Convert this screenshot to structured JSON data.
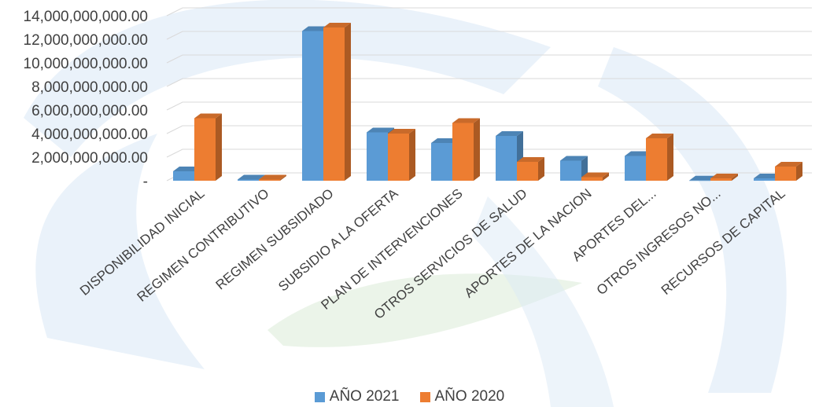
{
  "colors": {
    "series_2021": "#5b9bd5",
    "series_2020": "#ed7d31",
    "watermark_blue": "#dceaf6",
    "watermark_green": "#e3efdf",
    "grid": "#d9d9d9",
    "text": "#404040"
  },
  "chart_data": {
    "type": "bar",
    "style": "3d clustered column",
    "categories": [
      "DISPONIBILIDAD INICIAL",
      "REGIMEN CONTRIBUTIVO",
      "REGIMEN SUBSIDIADO",
      "SUBSIDIO A LA OFERTA",
      "PLAN DE INTERVENCIONES",
      "OTROS SERVICIOS DE SALUD",
      "APORTES DE LA NACION",
      "APORTES DEL...",
      "OTROS INGRESOS NO...",
      "RECURSOS DE CAPITAL"
    ],
    "series": [
      {
        "name": "AÑO 2021",
        "values": [
          800000000,
          100000000,
          12700000000,
          4100000000,
          3200000000,
          3800000000,
          1700000000,
          2100000000,
          20000000,
          200000000
        ]
      },
      {
        "name": "AÑO 2020",
        "values": [
          5300000000,
          100000000,
          13000000000,
          4000000000,
          4900000000,
          1600000000,
          300000000,
          3600000000,
          200000000,
          1200000000
        ]
      }
    ],
    "y_tick_labels": [
      "-",
      "2,000,000,000.00",
      "4,000,000,000.00",
      "6,000,000,000.00",
      "8,000,000,000.00",
      "10,000,000,000.00",
      "12,000,000,000.00",
      "14,000,000,000.00"
    ],
    "y_tick_values": [
      0,
      2000000000,
      4000000000,
      6000000000,
      8000000000,
      10000000000,
      12000000000,
      14000000000
    ],
    "ylim": [
      0,
      14000000000
    ],
    "grid": true,
    "legend_position": "bottom",
    "title": "",
    "xlabel": "",
    "ylabel": ""
  }
}
